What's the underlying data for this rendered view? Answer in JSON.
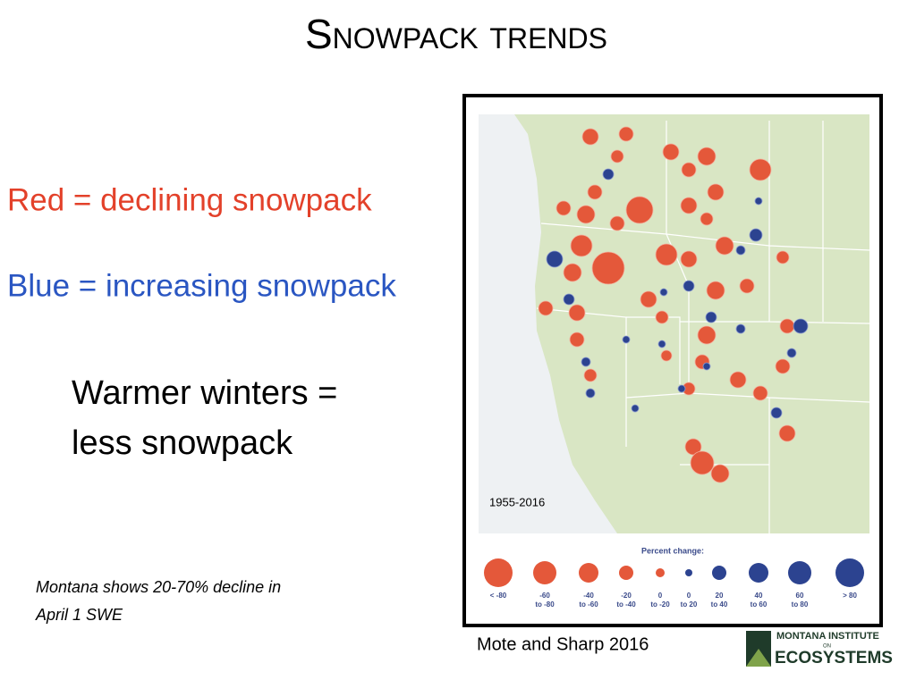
{
  "slide": {
    "title": "Snowpack trends",
    "red_note": "Red = declining snowpack",
    "blue_note": "Blue = increasing snowpack",
    "conclusion": [
      "Warmer winters =",
      "less snowpack"
    ],
    "montana_note": [
      "Montana shows 20-70% decline in",
      "April 1 SWE"
    ],
    "map": {
      "period": "1955-2016",
      "legend_title": "Percent change:",
      "legend": [
        [
          "< -80"
        ],
        [
          "-60",
          "to -80"
        ],
        [
          "-40",
          "to -60"
        ],
        [
          "-20",
          "to -40"
        ],
        [
          "0",
          "to -20"
        ],
        [
          "0",
          "to 20"
        ],
        [
          "20",
          "to 40"
        ],
        [
          "40",
          "to 60"
        ],
        [
          "60",
          "to 80"
        ],
        [
          "> 80"
        ]
      ]
    },
    "citation": "Mote and Sharp 2016",
    "logo": [
      "MONTANA INSTITUTE",
      "ON",
      "ECOSYSTEMS"
    ]
  }
}
